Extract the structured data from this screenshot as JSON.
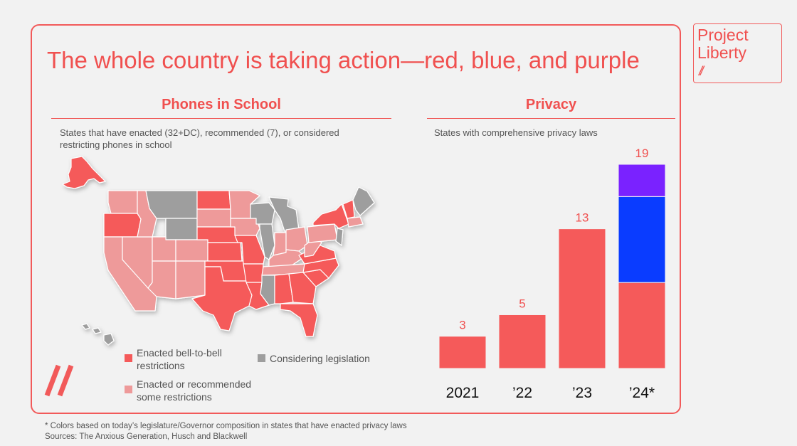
{
  "title": "The whole country is taking action—red, blue, and purple",
  "logo": {
    "line1": "Project",
    "line2": "Liberty",
    "mark": "//"
  },
  "phones": {
    "heading": "Phones in School",
    "subtitle_line1": "States that have enacted (32+DC), recommended (7), or considered",
    "subtitle_line2": "restricting phones in school",
    "legend": {
      "enacted_line1": "Enacted bell-to-bell",
      "enacted_line2": "restrictions",
      "recommended_line1": "Enacted or recommended",
      "recommended_line2": "some restrictions",
      "considering": "Considering legislation"
    },
    "colors": {
      "enacted": "#f55a5a",
      "recommended": "#ee9a9a",
      "considering": "#9e9e9e"
    }
  },
  "privacy": {
    "heading": "Privacy",
    "subtitle": "States with comprehensive privacy laws"
  },
  "chart_data": {
    "type": "bar",
    "title": "Privacy",
    "subtitle": "States with comprehensive privacy laws",
    "categories": [
      "2021",
      "’22",
      "’23",
      "’24*"
    ],
    "totals": [
      3,
      5,
      13,
      19
    ],
    "series": [
      {
        "name": "Red",
        "color": "#f55a5a",
        "values": [
          3,
          5,
          13,
          8
        ]
      },
      {
        "name": "Blue",
        "color": "#0a3cff",
        "values": [
          0,
          0,
          0,
          8
        ]
      },
      {
        "name": "Purple",
        "color": "#7a22ff",
        "values": [
          0,
          0,
          0,
          3
        ]
      }
    ],
    "ylim": [
      0,
      19
    ],
    "label_color": "#f0504f",
    "grid": false
  },
  "footnote": {
    "line1": "* Colors based on today’s legislature/Governor composition in states that have enacted privacy laws",
    "line2": "Sources: The Anxious Generation, Husch and Blackwell"
  }
}
